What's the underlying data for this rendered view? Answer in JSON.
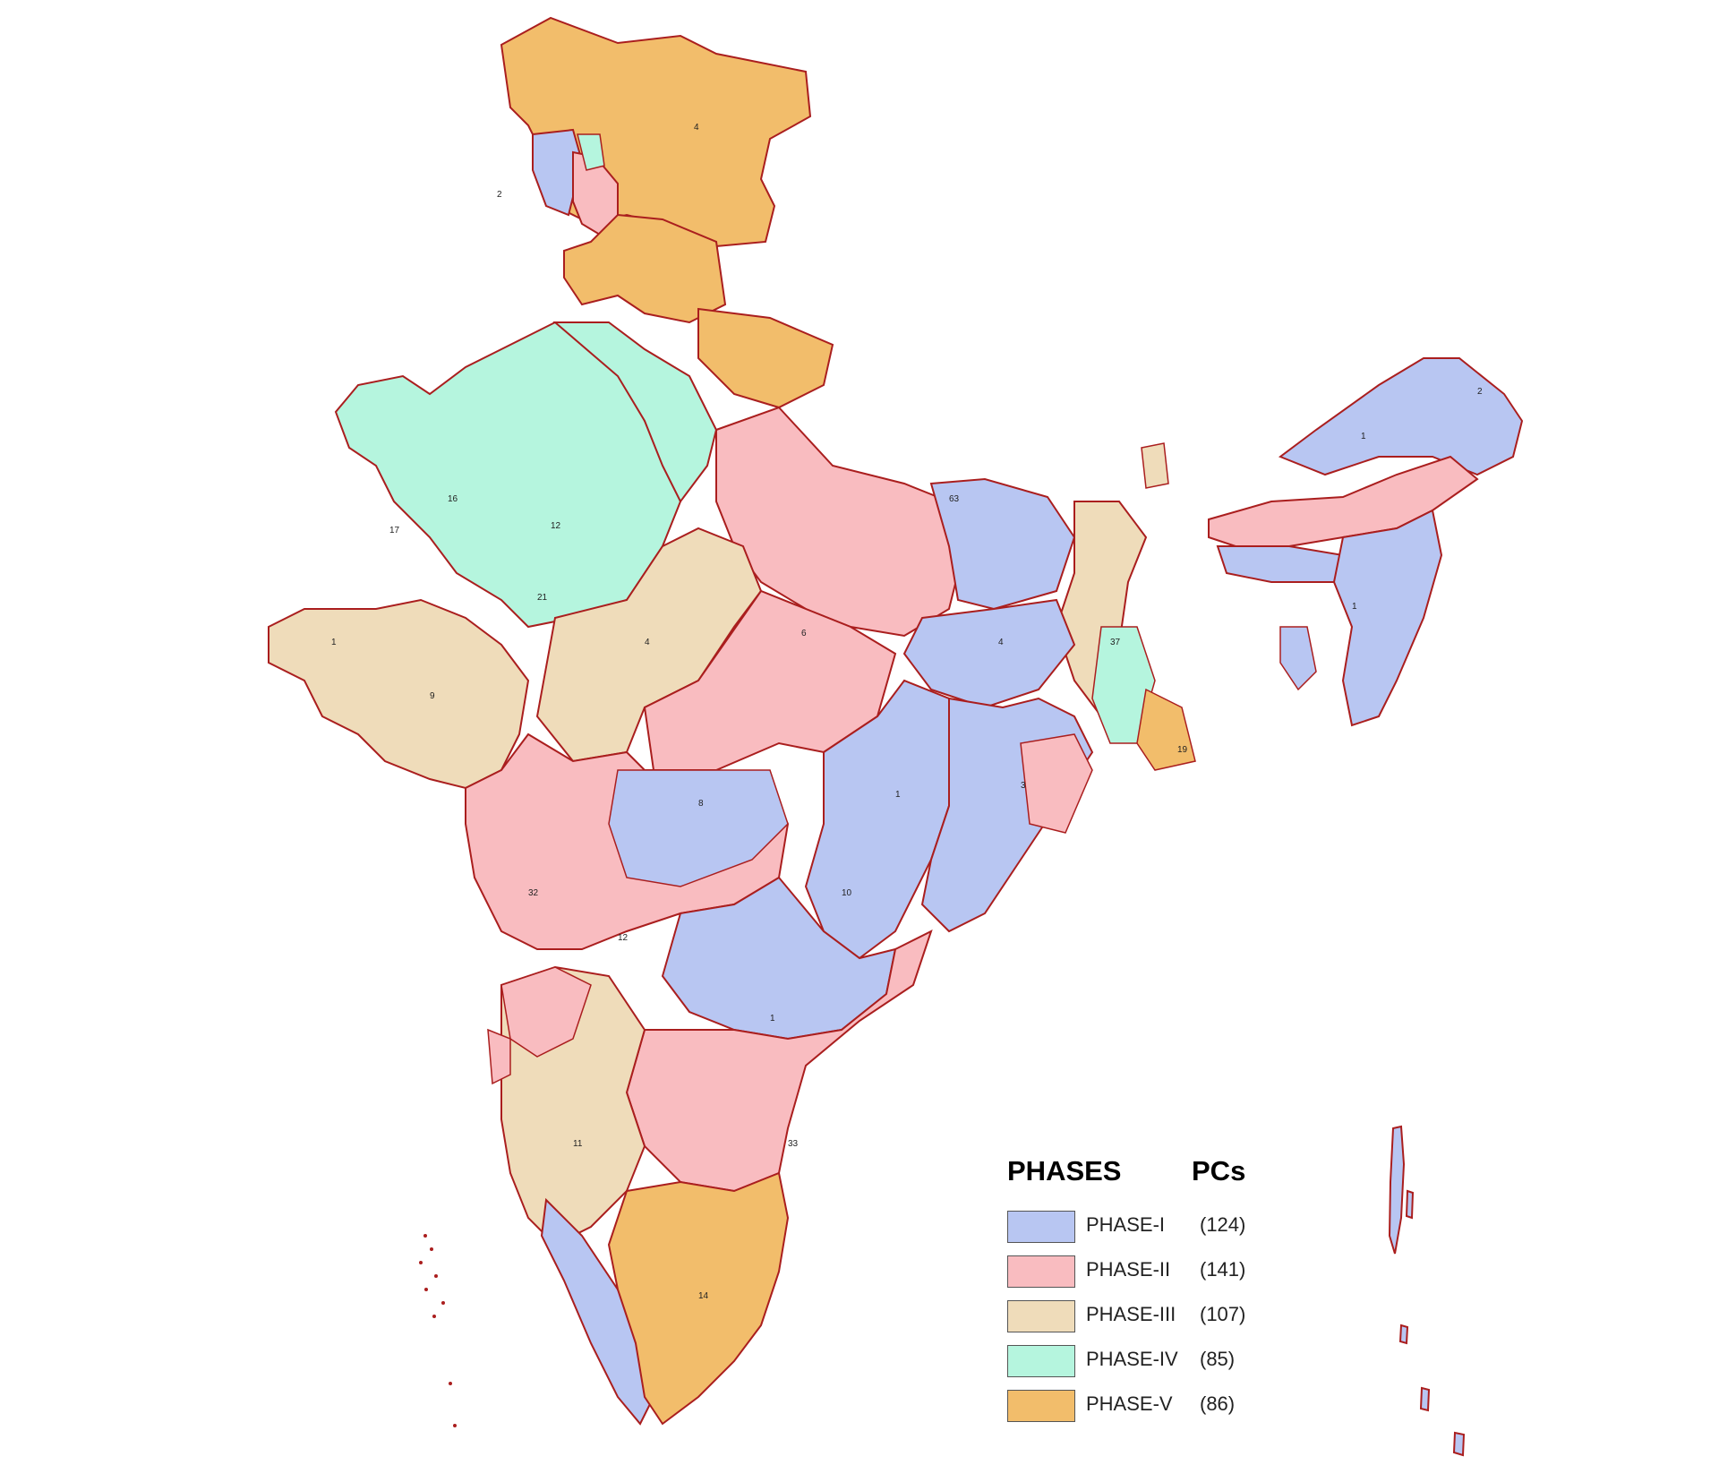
{
  "legend": {
    "title": "PHASES",
    "count_header": "PCs",
    "items": [
      {
        "label": "PHASE-I",
        "count": "(124)",
        "color": "#b8c6f2"
      },
      {
        "label": "PHASE-II",
        "count": "(141)",
        "color": "#f9bcc0"
      },
      {
        "label": "PHASE-III",
        "count": "(107)",
        "color": "#efdcba"
      },
      {
        "label": "PHASE-IV",
        "count": "(85)",
        "color": "#b5f5de"
      },
      {
        "label": "PHASE-V",
        "count": "(86)",
        "color": "#f2bd6b"
      }
    ]
  },
  "map": {
    "boundary_color": "#aa1e1e",
    "constituency_line_color": "#333333"
  }
}
